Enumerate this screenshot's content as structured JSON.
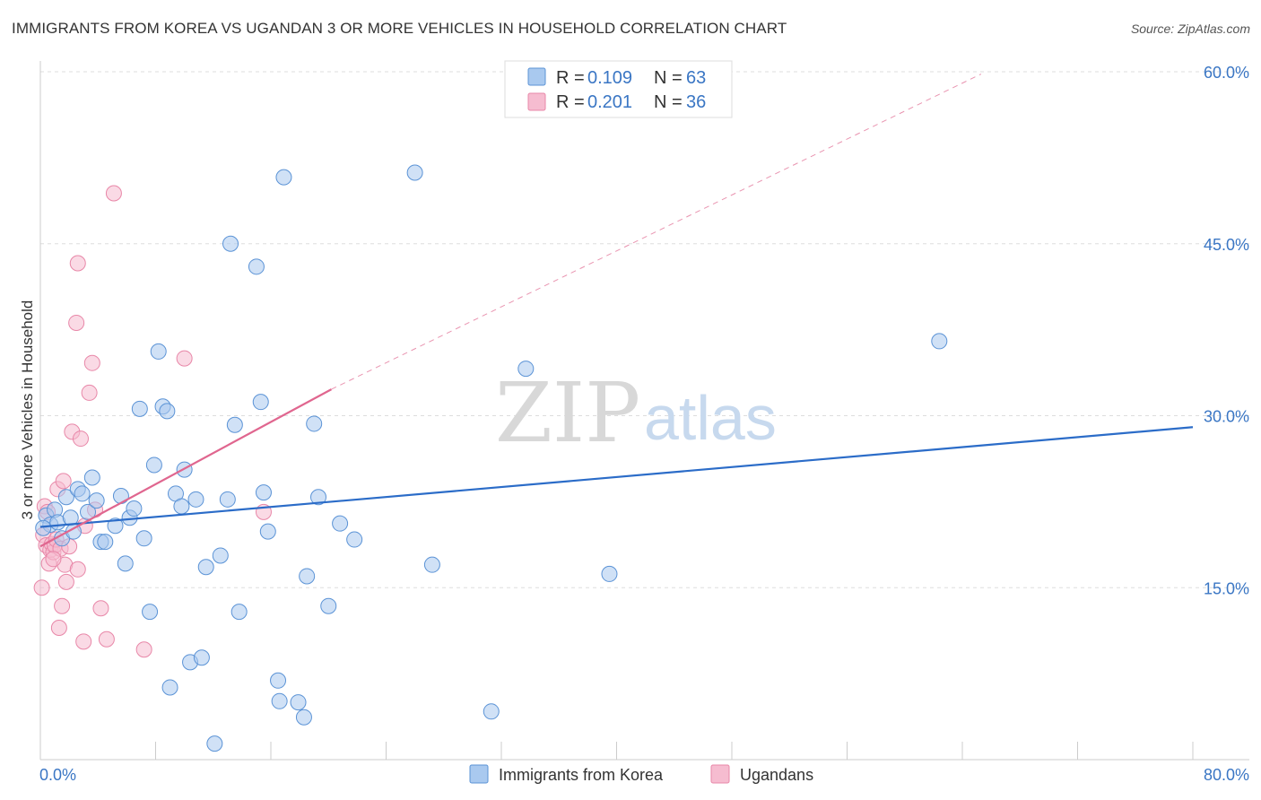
{
  "title": "IMMIGRANTS FROM KOREA VS UGANDAN 3 OR MORE VEHICLES IN HOUSEHOLD CORRELATION CHART",
  "source": "Source: ZipAtlas.com",
  "watermark": {
    "zip": "ZIP",
    "atlas": "atlas"
  },
  "colors": {
    "korea_fill": "#a9c9ef",
    "korea_stroke": "#5b93d6",
    "korea_line": "#2b6cc8",
    "uganda_fill": "#f6bcd0",
    "uganda_stroke": "#e887a8",
    "uganda_line": "#e0668f",
    "grid": "#dddddd",
    "tick_label": "#3a76c4"
  },
  "legend": {
    "rows": [
      {
        "r_label": "R =",
        "r_value": "0.109",
        "n_label": "N =",
        "n_value": "63"
      },
      {
        "r_label": "R =",
        "r_value": "0.201",
        "n_label": "N =",
        "n_value": "36"
      }
    ]
  },
  "chart_data": {
    "type": "scatter",
    "title": "IMMIGRANTS FROM KOREA VS UGANDAN 3 OR MORE VEHICLES IN HOUSEHOLD CORRELATION CHART",
    "xlabel": "",
    "ylabel": "3 or more Vehicles in Household",
    "xlim": [
      0,
      80
    ],
    "ylim": [
      0,
      60
    ],
    "x_tick_labels": [
      "0.0%",
      "80.0%"
    ],
    "y_ticks": [
      15,
      30,
      45,
      60
    ],
    "y_tick_labels": [
      "15.0%",
      "30.0%",
      "45.0%",
      "60.0%"
    ],
    "series": [
      {
        "name": "Immigrants from Korea",
        "R": 0.109,
        "N": 63,
        "trend": {
          "x": [
            0,
            80
          ],
          "y": [
            20.3,
            29.0
          ]
        },
        "points": [
          [
            0.4,
            21.3
          ],
          [
            0.7,
            20.5
          ],
          [
            1.0,
            21.8
          ],
          [
            1.2,
            20.7
          ],
          [
            1.5,
            19.3
          ],
          [
            1.8,
            22.9
          ],
          [
            2.1,
            21.1
          ],
          [
            2.3,
            19.9
          ],
          [
            2.6,
            23.6
          ],
          [
            2.9,
            23.2
          ],
          [
            3.3,
            21.6
          ],
          [
            3.6,
            24.6
          ],
          [
            3.9,
            22.6
          ],
          [
            4.2,
            19.0
          ],
          [
            4.5,
            19.0
          ],
          [
            5.2,
            20.4
          ],
          [
            5.6,
            23.0
          ],
          [
            5.9,
            17.1
          ],
          [
            6.2,
            21.1
          ],
          [
            6.5,
            21.9
          ],
          [
            6.9,
            30.6
          ],
          [
            7.2,
            19.3
          ],
          [
            7.6,
            12.9
          ],
          [
            7.9,
            25.7
          ],
          [
            8.2,
            35.6
          ],
          [
            8.5,
            30.8
          ],
          [
            8.8,
            30.4
          ],
          [
            9.0,
            6.3
          ],
          [
            9.4,
            23.2
          ],
          [
            9.8,
            22.1
          ],
          [
            10.0,
            25.3
          ],
          [
            10.4,
            8.5
          ],
          [
            10.8,
            22.7
          ],
          [
            11.2,
            8.9
          ],
          [
            11.5,
            16.8
          ],
          [
            12.1,
            1.4
          ],
          [
            12.5,
            17.8
          ],
          [
            13.0,
            22.7
          ],
          [
            13.2,
            45.0
          ],
          [
            13.5,
            29.2
          ],
          [
            13.8,
            12.9
          ],
          [
            15.0,
            43.0
          ],
          [
            15.3,
            31.2
          ],
          [
            15.5,
            23.3
          ],
          [
            15.8,
            19.9
          ],
          [
            16.5,
            6.9
          ],
          [
            16.6,
            5.1
          ],
          [
            16.9,
            50.8
          ],
          [
            17.9,
            5.0
          ],
          [
            18.3,
            3.7
          ],
          [
            18.5,
            16.0
          ],
          [
            19.0,
            29.3
          ],
          [
            19.3,
            22.9
          ],
          [
            20.0,
            13.4
          ],
          [
            20.8,
            20.6
          ],
          [
            21.8,
            19.2
          ],
          [
            26.0,
            51.2
          ],
          [
            27.2,
            17.0
          ],
          [
            31.3,
            4.2
          ],
          [
            33.7,
            34.1
          ],
          [
            39.5,
            16.2
          ],
          [
            62.4,
            36.5
          ],
          [
            0.2,
            20.2
          ]
        ]
      },
      {
        "name": "Ugandans",
        "R": 0.201,
        "N": 36,
        "trend": {
          "x": [
            0,
            20.2
          ],
          "y": [
            18.6,
            32.3
          ]
        },
        "trend_extended": {
          "x": [
            20.2,
            65.3
          ],
          "y": [
            32.3,
            59.8
          ]
        },
        "points": [
          [
            0.1,
            15.0
          ],
          [
            0.2,
            19.6
          ],
          [
            0.3,
            22.1
          ],
          [
            0.4,
            18.7
          ],
          [
            0.5,
            21.6
          ],
          [
            0.6,
            17.1
          ],
          [
            0.7,
            18.3
          ],
          [
            0.8,
            18.8
          ],
          [
            0.9,
            18.1
          ],
          [
            1.0,
            18.7
          ],
          [
            1.1,
            19.2
          ],
          [
            1.2,
            23.6
          ],
          [
            1.3,
            11.5
          ],
          [
            1.4,
            18.4
          ],
          [
            1.5,
            13.4
          ],
          [
            1.6,
            24.3
          ],
          [
            1.7,
            17.0
          ],
          [
            1.8,
            15.5
          ],
          [
            2.0,
            18.6
          ],
          [
            2.2,
            28.6
          ],
          [
            2.5,
            38.1
          ],
          [
            2.6,
            16.6
          ],
          [
            2.6,
            43.3
          ],
          [
            2.8,
            28.0
          ],
          [
            3.0,
            10.3
          ],
          [
            3.1,
            20.4
          ],
          [
            3.4,
            32.0
          ],
          [
            3.6,
            34.6
          ],
          [
            3.8,
            21.8
          ],
          [
            4.2,
            13.2
          ],
          [
            4.6,
            10.5
          ],
          [
            5.1,
            49.4
          ],
          [
            7.2,
            9.6
          ],
          [
            10.0,
            35.0
          ],
          [
            15.5,
            21.6
          ],
          [
            0.9,
            17.5
          ]
        ]
      }
    ]
  },
  "bottom_legend": [
    {
      "label": "Immigrants from Korea"
    },
    {
      "label": "Ugandans"
    }
  ]
}
